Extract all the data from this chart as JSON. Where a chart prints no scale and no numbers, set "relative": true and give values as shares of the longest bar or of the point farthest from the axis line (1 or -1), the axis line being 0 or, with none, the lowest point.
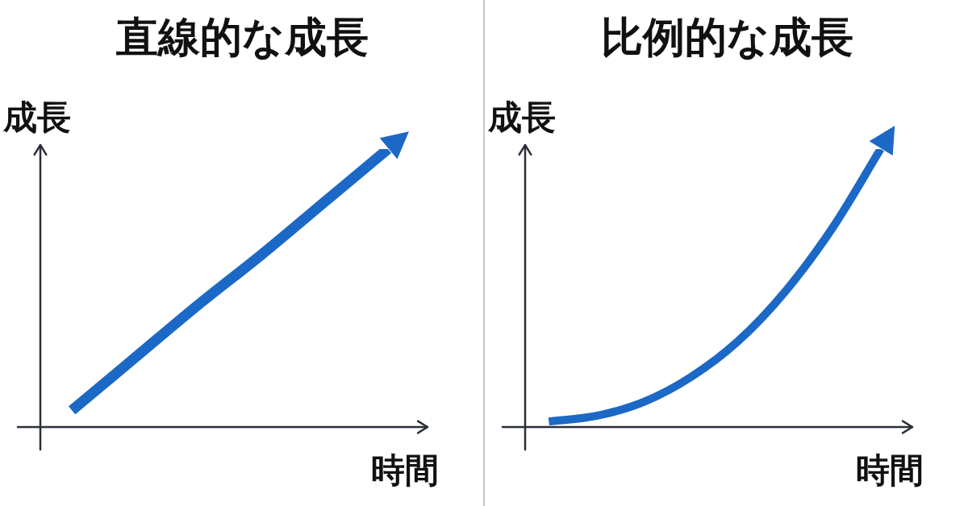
{
  "chart_data": [
    {
      "type": "line",
      "title": "直線的な成長",
      "xlabel": "時間",
      "ylabel": "成長",
      "relative": true,
      "categories": [
        null,
        null,
        null,
        null,
        null,
        null
      ],
      "series": [
        {
          "color": "#1c68c6",
          "values": [
            0.06,
            0.25,
            0.44,
            0.62,
            0.81,
            1
          ]
        }
      ]
    },
    {
      "type": "line",
      "title": "比例的な成長",
      "xlabel": "時間",
      "ylabel": "成長",
      "relative": true,
      "categories": [
        null,
        null,
        null,
        null,
        null,
        null,
        null,
        null
      ],
      "series": [
        {
          "color": "#1c68c6",
          "values": [
            0.02,
            0.04,
            0.09,
            0.18,
            0.31,
            0.49,
            0.72,
            1
          ]
        }
      ]
    }
  ]
}
